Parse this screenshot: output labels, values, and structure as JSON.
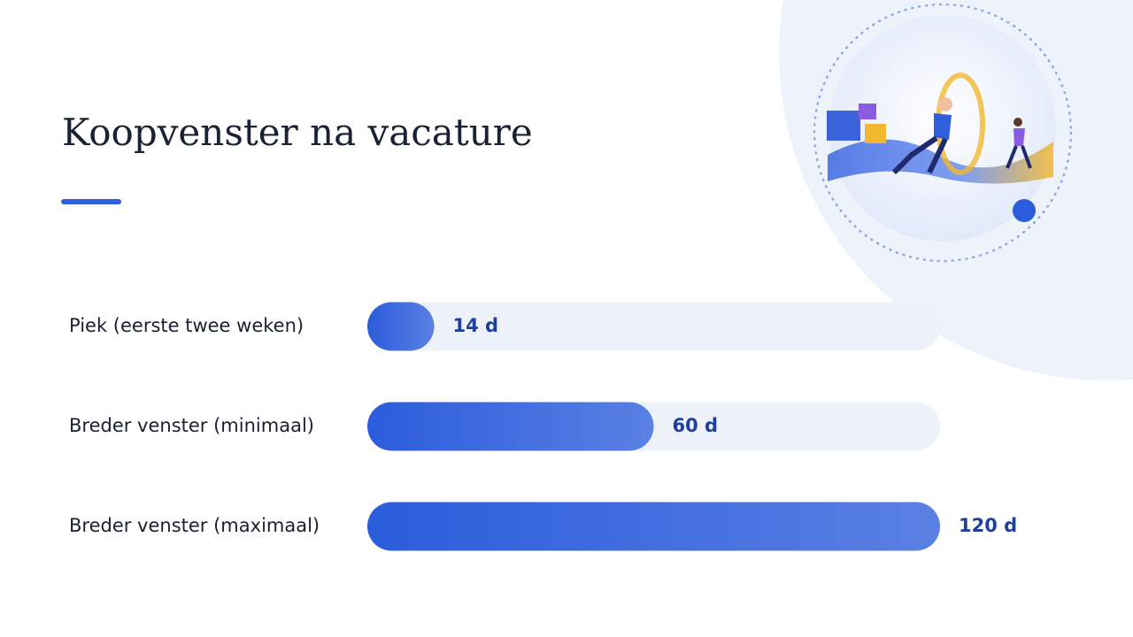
{
  "chart_data": {
    "type": "bar",
    "orientation": "horizontal",
    "title": "Koopvenster na vacature",
    "categories": [
      "Piek (eerste twee weken)",
      "Breder venster (minimaal)",
      "Breder venster (maximaal)"
    ],
    "values": [
      14,
      60,
      120
    ],
    "value_labels": [
      "14 d",
      "60 d",
      "120 d"
    ],
    "color": "#2b5cdc"
  }
}
